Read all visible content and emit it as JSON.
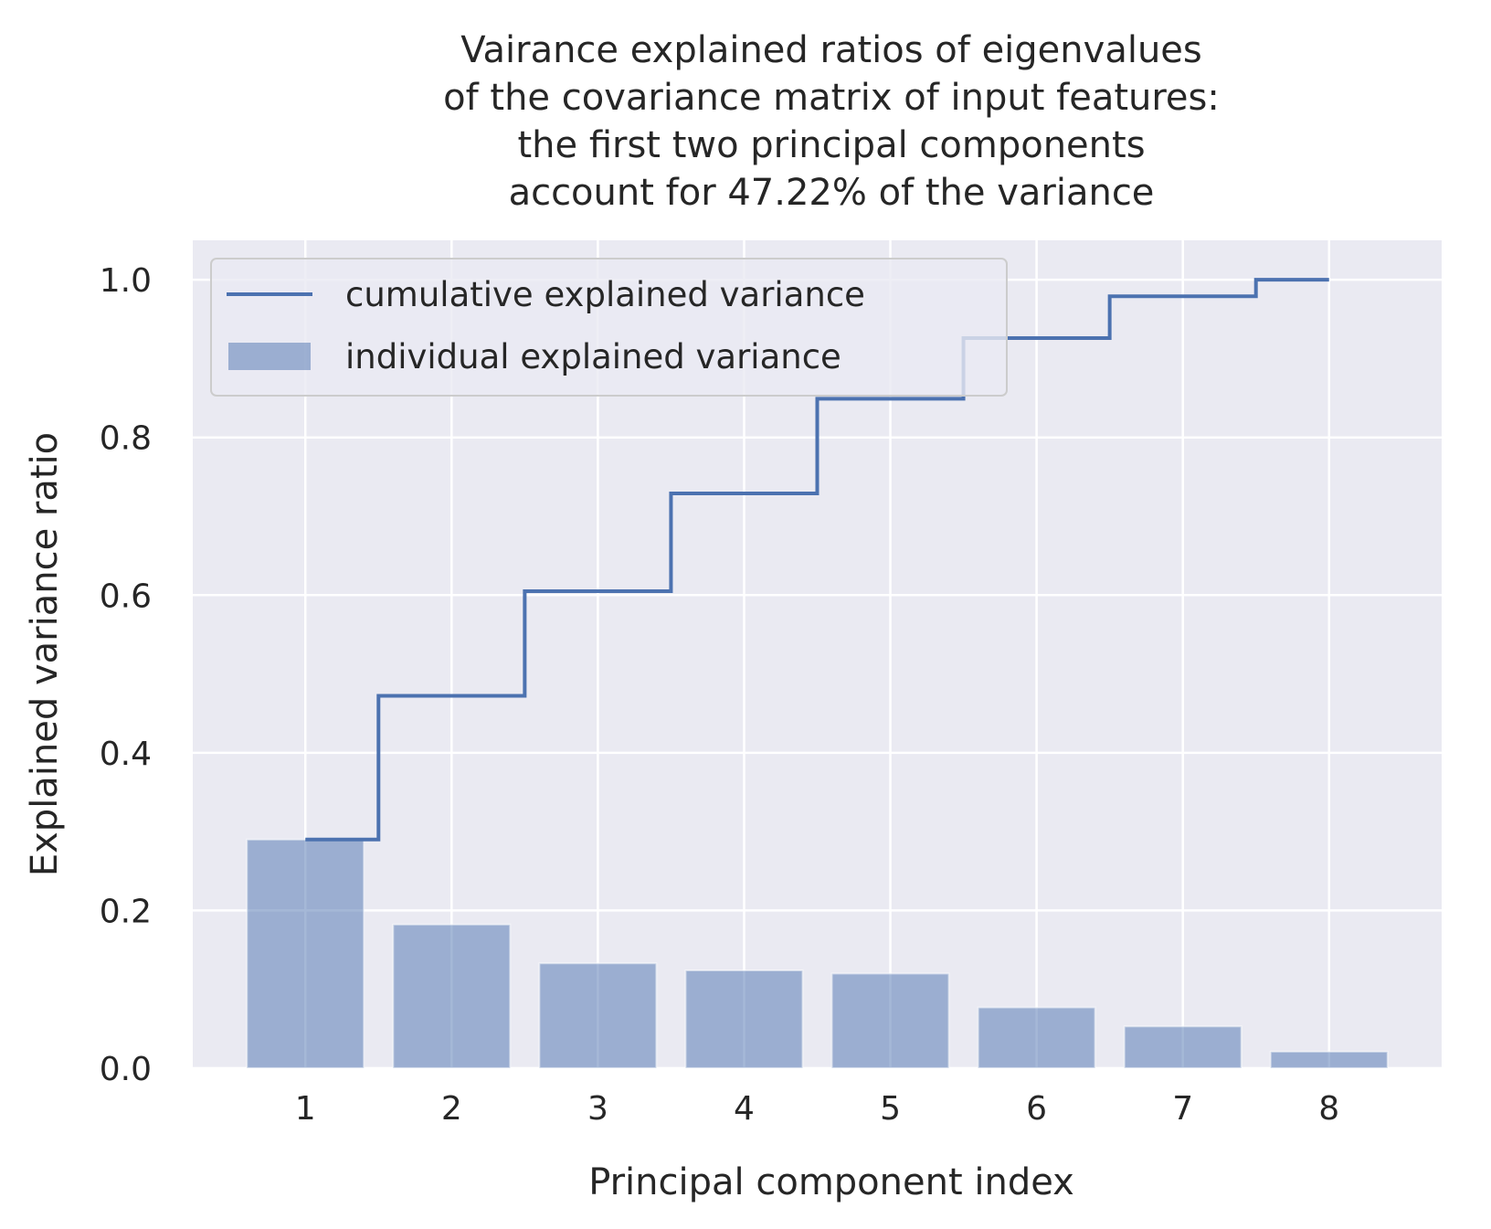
{
  "chart_data": {
    "type": "bar",
    "title_lines": [
      "Vairance explained ratios of eigenvalues",
      "of the covariance matrix of input features:",
      "the first two principal components",
      "account for 47.22% of the variance"
    ],
    "xlabel": "Principal component index",
    "ylabel": "Explained variance ratio",
    "categories": [
      "1",
      "2",
      "3",
      "4",
      "5",
      "6",
      "7",
      "8"
    ],
    "x": [
      1,
      2,
      3,
      4,
      5,
      6,
      7,
      8
    ],
    "xlim": [
      0.23,
      8.77
    ],
    "ylim": [
      0,
      1.05
    ],
    "yticks": [
      0.0,
      0.2,
      0.4,
      0.6,
      0.8,
      1.0
    ],
    "ytick_labels": [
      "0.0",
      "0.2",
      "0.4",
      "0.6",
      "0.8",
      "1.0"
    ],
    "grid": true,
    "legend_position": "upper-left",
    "series": [
      {
        "name": "cumulative explained variance",
        "kind": "step",
        "color": "#4c72b0",
        "values": [
          0.29,
          0.4722,
          0.605,
          0.729,
          0.849,
          0.926,
          0.979,
          1.0
        ]
      },
      {
        "name": "individual explained variance",
        "kind": "bar",
        "color": "#4c72b0",
        "opacity": 0.5,
        "values": [
          0.29,
          0.1822,
          0.133,
          0.124,
          0.12,
          0.077,
          0.053,
          0.021
        ]
      }
    ]
  }
}
